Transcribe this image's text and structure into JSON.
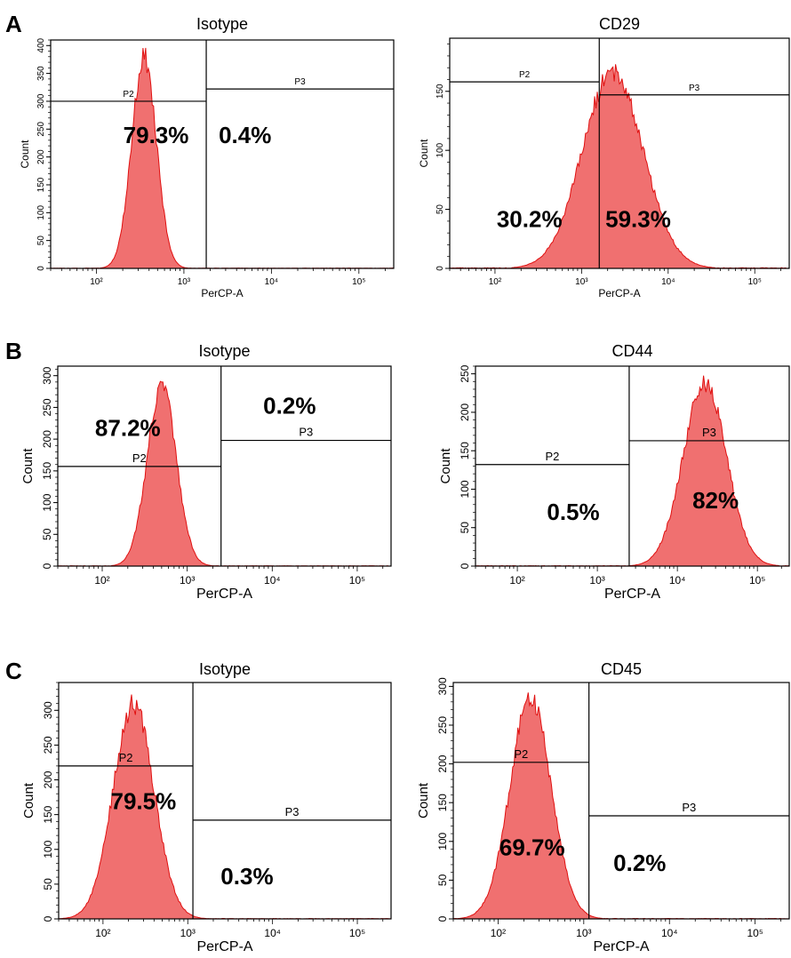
{
  "panel_letters": [
    "A",
    "B",
    "C"
  ],
  "colors": {
    "fill": "#f07070",
    "stroke": "#e01010",
    "axis": "#000000"
  },
  "chart_data": [
    {
      "type": "histogram",
      "panel": "A",
      "title": "Isotype",
      "xlabel": "PerCP-A",
      "ylabel": "Count",
      "xscale": "log",
      "xlim": [
        30,
        250000
      ],
      "ylim": [
        0,
        410
      ],
      "yticks": [
        0,
        50,
        100,
        150,
        200,
        250,
        300,
        350,
        400
      ],
      "xticks": [
        {
          "v": 100,
          "label": "10²"
        },
        {
          "v": 1000,
          "label": "10³"
        },
        {
          "v": 10000,
          "label": "10⁴"
        },
        {
          "v": 100000,
          "label": "10⁵"
        }
      ],
      "peaks": [
        {
          "center": 350,
          "sigma": 0.14,
          "height": 400
        }
      ],
      "gates": [
        {
          "name": "P2",
          "x1": 30,
          "x2": 1800,
          "y": 300
        },
        {
          "name": "P3",
          "x1": 1800,
          "x2": 250000,
          "y": 322
        }
      ],
      "annotations": [
        {
          "text": "79.3%",
          "x": 480,
          "y": 225
        },
        {
          "text": "0.4%",
          "x": 5000,
          "y": 225
        }
      ]
    },
    {
      "type": "histogram",
      "panel": "A",
      "title": "CD29",
      "xlabel": "PerCP-A",
      "ylabel": "Count",
      "xscale": "log",
      "xlim": [
        30,
        250000
      ],
      "ylim": [
        0,
        195
      ],
      "yticks": [
        0,
        50,
        100,
        150
      ],
      "xticks": [
        {
          "v": 100,
          "label": "10²"
        },
        {
          "v": 1000,
          "label": "10³"
        },
        {
          "v": 10000,
          "label": "10⁴"
        },
        {
          "v": 100000,
          "label": "10⁵"
        }
      ],
      "peaks": [
        {
          "center": 2300,
          "sigma": 0.35,
          "height": 175
        }
      ],
      "gates": [
        {
          "name": "P2",
          "x1": 30,
          "x2": 1600,
          "y": 158
        },
        {
          "name": "P3",
          "x1": 1600,
          "x2": 250000,
          "y": 147
        }
      ],
      "annotations": [
        {
          "text": "30.2%",
          "x": 250,
          "y": 35
        },
        {
          "text": "59.3%",
          "x": 4500,
          "y": 35
        }
      ]
    },
    {
      "type": "histogram",
      "panel": "B",
      "title": "Isotype",
      "xlabel": "PerCP-A",
      "ylabel": "Count",
      "xscale": "log",
      "xlim": [
        30,
        250000
      ],
      "ylim": [
        0,
        315
      ],
      "yticks": [
        0,
        50,
        100,
        150,
        200,
        250,
        300
      ],
      "xticks": [
        {
          "v": 100,
          "label": "10²"
        },
        {
          "v": 1000,
          "label": "10³"
        },
        {
          "v": 10000,
          "label": "10⁴"
        },
        {
          "v": 100000,
          "label": "10⁵"
        }
      ],
      "peaks": [
        {
          "center": 500,
          "sigma": 0.17,
          "height": 300
        }
      ],
      "gates": [
        {
          "name": "P2",
          "x1": 30,
          "x2": 2500,
          "y": 157
        },
        {
          "name": "P3",
          "x1": 2500,
          "x2": 250000,
          "y": 198
        }
      ],
      "annotations": [
        {
          "text": "87.2%",
          "x": 200,
          "y": 205
        },
        {
          "text": "0.2%",
          "x": 16000,
          "y": 240
        }
      ]
    },
    {
      "type": "histogram",
      "panel": "B",
      "title": "CD44",
      "xlabel": "PerCP-A",
      "ylabel": "Count",
      "xscale": "log",
      "xlim": [
        30,
        250000
      ],
      "ylim": [
        0,
        260
      ],
      "yticks": [
        0,
        50,
        100,
        150,
        200,
        250
      ],
      "xticks": [
        {
          "v": 100,
          "label": "10²"
        },
        {
          "v": 1000,
          "label": "10³"
        },
        {
          "v": 10000,
          "label": "10⁴"
        },
        {
          "v": 100000,
          "label": "10⁵"
        }
      ],
      "peaks": [
        {
          "center": 22000,
          "sigma": 0.27,
          "height": 250
        }
      ],
      "gates": [
        {
          "name": "P2",
          "x1": 30,
          "x2": 2500,
          "y": 132
        },
        {
          "name": "P3",
          "x1": 2500,
          "x2": 250000,
          "y": 163
        }
      ],
      "annotations": [
        {
          "text": "0.5%",
          "x": 500,
          "y": 60
        },
        {
          "text": "82%",
          "x": 30000,
          "y": 75
        }
      ]
    },
    {
      "type": "histogram",
      "panel": "C",
      "title": "Isotype",
      "xlabel": "PerCP-A",
      "ylabel": "Count",
      "xscale": "log",
      "xlim": [
        30,
        250000
      ],
      "ylim": [
        0,
        340
      ],
      "yticks": [
        0,
        50,
        100,
        150,
        200,
        250,
        300
      ],
      "xticks": [
        {
          "v": 100,
          "label": "10²"
        },
        {
          "v": 1000,
          "label": "10³"
        },
        {
          "v": 10000,
          "label": "10⁴"
        },
        {
          "v": 100000,
          "label": "10⁵"
        }
      ],
      "peaks": [
        {
          "center": 230,
          "sigma": 0.24,
          "height": 325
        }
      ],
      "gates": [
        {
          "name": "P2",
          "x1": 30,
          "x2": 1150,
          "y": 220
        },
        {
          "name": "P3",
          "x1": 1150,
          "x2": 250000,
          "y": 142
        }
      ],
      "annotations": [
        {
          "text": "79.5%",
          "x": 300,
          "y": 158
        },
        {
          "text": "0.3%",
          "x": 5000,
          "y": 50
        }
      ]
    },
    {
      "type": "histogram",
      "panel": "C",
      "title": "CD45",
      "xlabel": "PerCP-A",
      "ylabel": "Count",
      "xscale": "log",
      "xlim": [
        30,
        250000
      ],
      "ylim": [
        0,
        305
      ],
      "yticks": [
        0,
        50,
        100,
        150,
        200,
        250,
        300
      ],
      "xticks": [
        {
          "v": 100,
          "label": "10²"
        },
        {
          "v": 1000,
          "label": "10³"
        },
        {
          "v": 10000,
          "label": "10⁴"
        },
        {
          "v": 100000,
          "label": "10⁵"
        }
      ],
      "peaks": [
        {
          "center": 240,
          "sigma": 0.24,
          "height": 300
        }
      ],
      "gates": [
        {
          "name": "P2",
          "x1": 30,
          "x2": 1150,
          "y": 202
        },
        {
          "name": "P3",
          "x1": 1150,
          "x2": 250000,
          "y": 133
        }
      ],
      "annotations": [
        {
          "text": "69.7%",
          "x": 250,
          "y": 82
        },
        {
          "text": "0.2%",
          "x": 4500,
          "y": 62
        }
      ]
    }
  ]
}
